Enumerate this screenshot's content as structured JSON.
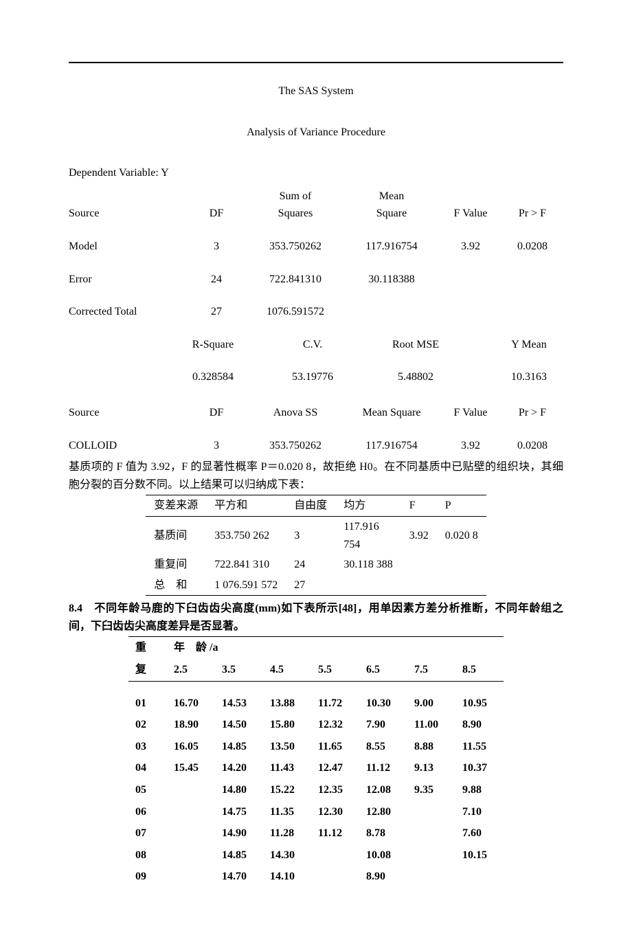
{
  "header": {
    "title": "The SAS System",
    "subtitle": "Analysis of Variance Procedure"
  },
  "depvar_label": "Dependent Variable: Y",
  "anova": {
    "headers": {
      "source": "Source",
      "df": "DF",
      "sumsq_top": "Sum of",
      "sumsq_bot": "Squares",
      "meansq_top": "Mean",
      "meansq_bot": "Square",
      "fvalue": "F Value",
      "prf": "Pr > F"
    },
    "rows": [
      {
        "source": "Model",
        "df": "3",
        "ss": "353.750262",
        "ms": "117.916754",
        "f": "3.92",
        "p": "0.0208"
      },
      {
        "source": "Error",
        "df": "24",
        "ss": "722.841310",
        "ms": "30.118388",
        "f": "",
        "p": ""
      },
      {
        "source": "Corrected Total",
        "df": "27",
        "ss": "1076.591572",
        "ms": "",
        "f": "",
        "p": ""
      }
    ]
  },
  "stats": {
    "headers": {
      "rsq": "R-Square",
      "cv": "C.V.",
      "rmse": "Root MSE",
      "ymean": "Y Mean"
    },
    "values": {
      "rsq": "0.328584",
      "cv": "53.19776",
      "rmse": "5.48802",
      "ymean": "10.3163"
    }
  },
  "anova2": {
    "headers": {
      "source": "Source",
      "df": "DF",
      "ss": "Anova SS",
      "ms": "Mean Square",
      "f": "F Value",
      "p": "Pr > F"
    },
    "rows": [
      {
        "source": "COLLOID",
        "df": "3",
        "ss": "353.750262",
        "ms": "117.916754",
        "f": "3.92",
        "p": "0.0208"
      }
    ]
  },
  "paragraph1": "基质项的 F 值为 3.92，F 的显著性概率 P＝0.020 8，故拒绝 H0。在不同基质中已贴壁的组织块，其细胞分裂的百分数不同。以上结果可以归纳成下表：",
  "cn_anova": {
    "headers": [
      "变差来源",
      "平方和",
      "自由度",
      "均方",
      "F",
      "P"
    ],
    "rows": [
      [
        "基质间",
        "353.750 262",
        "3",
        "117.916\n754",
        "3.92",
        "0.020 8"
      ],
      [
        "重复间",
        "722.841 310",
        "24",
        "30.118 388",
        "",
        ""
      ],
      [
        "总　和",
        "1 076.591 572",
        "27",
        "",
        "",
        ""
      ]
    ]
  },
  "section84": "8.4　不同年龄马鹿的下臼齿齿尖高度(mm)如下表所示[48]，用单因素方差分析推断，不同年龄组之间，下臼齿齿尖高度差异是否显著。",
  "data_table": {
    "rep_header_top": "重",
    "rep_header_bot": "复",
    "age_header": "年　龄 /a",
    "ages": [
      "2.5",
      "3.5",
      "4.5",
      "5.5",
      "6.5",
      "7.5",
      "8.5"
    ],
    "rows": [
      {
        "rep": "01",
        "v": [
          "16.70",
          "14.53",
          "13.88",
          "11.72",
          "10.30",
          "9.00",
          "10.95"
        ]
      },
      {
        "rep": "02",
        "v": [
          "18.90",
          "14.50",
          "15.80",
          "12.32",
          "7.90",
          "11.00",
          "8.90"
        ]
      },
      {
        "rep": "03",
        "v": [
          "16.05",
          "14.85",
          "13.50",
          "11.65",
          "8.55",
          "8.88",
          "11.55"
        ]
      },
      {
        "rep": "04",
        "v": [
          "15.45",
          "14.20",
          "11.43",
          "12.47",
          "11.12",
          "9.13",
          "10.37"
        ]
      },
      {
        "rep": "05",
        "v": [
          "",
          "14.80",
          "15.22",
          "12.35",
          "12.08",
          "9.35",
          "9.88"
        ]
      },
      {
        "rep": "06",
        "v": [
          "",
          "14.75",
          "11.35",
          "12.30",
          "12.80",
          "",
          "7.10"
        ]
      },
      {
        "rep": "07",
        "v": [
          "",
          "14.90",
          "11.28",
          "11.12",
          "8.78",
          "",
          "7.60"
        ]
      },
      {
        "rep": "08",
        "v": [
          "",
          "14.85",
          "14.30",
          "",
          "10.08",
          "",
          "10.15"
        ]
      },
      {
        "rep": "09",
        "v": [
          "",
          "14.70",
          "14.10",
          "",
          "8.90",
          "",
          ""
        ]
      }
    ]
  }
}
